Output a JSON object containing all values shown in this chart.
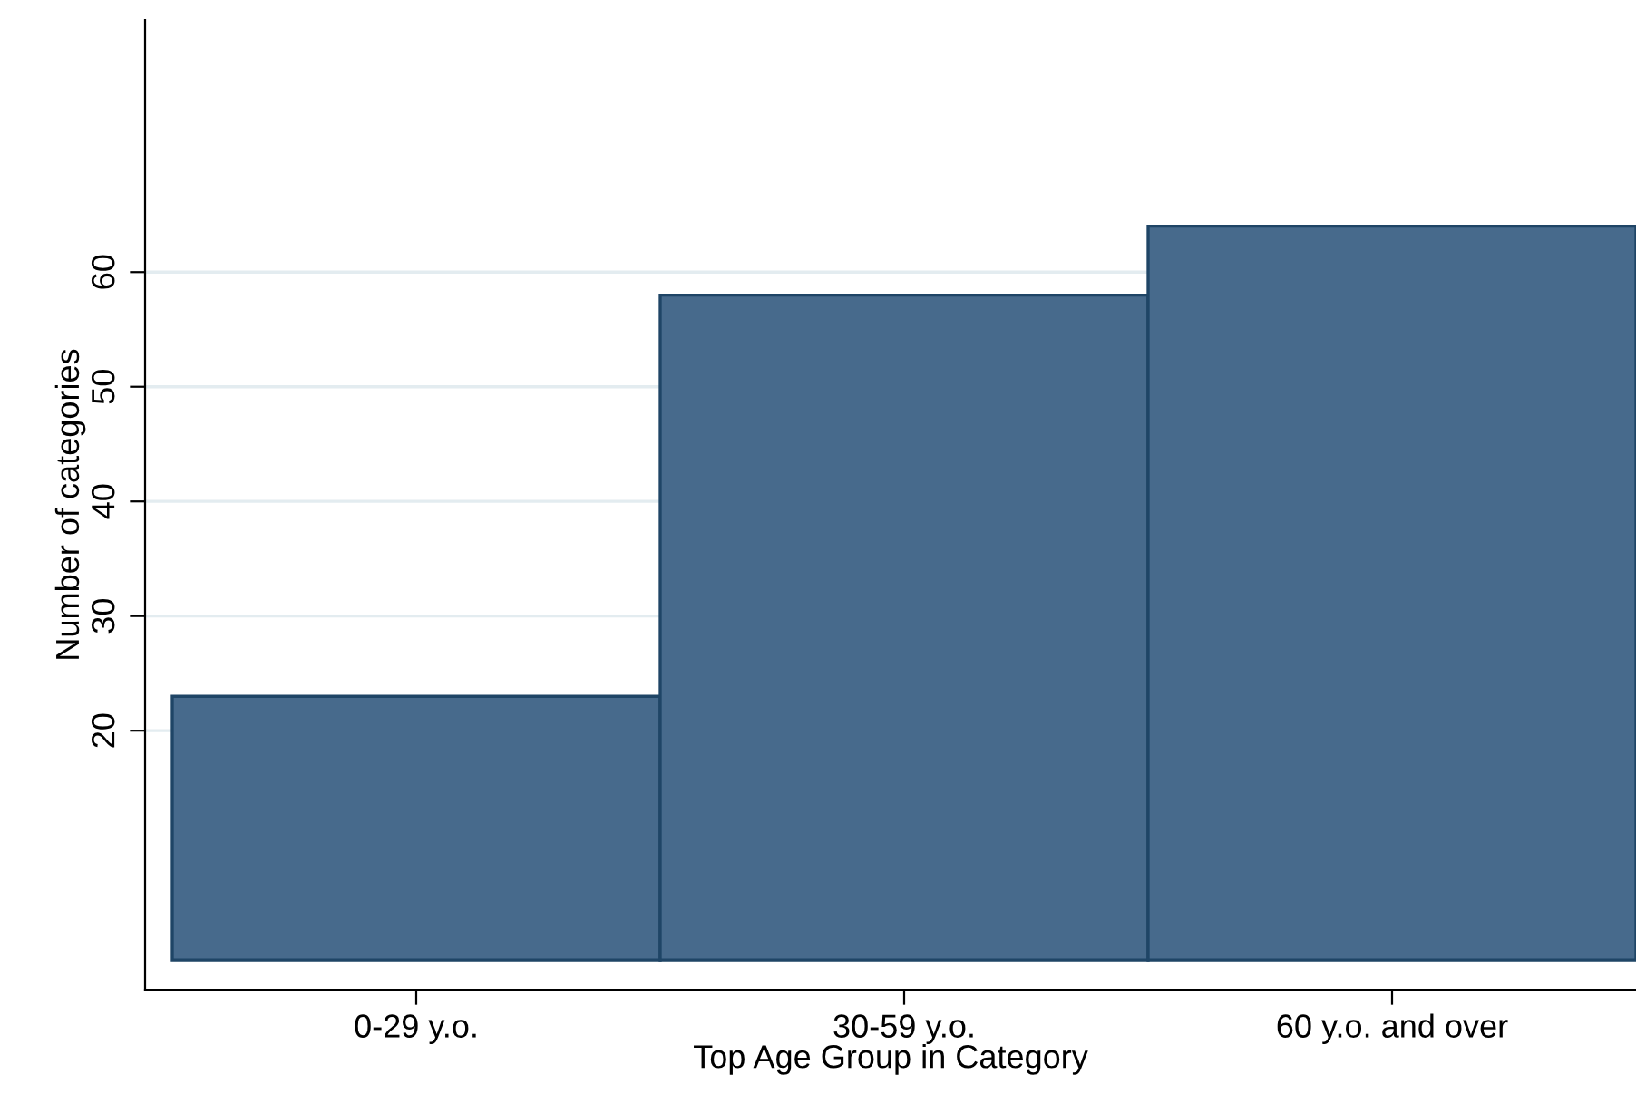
{
  "chart_data": {
    "type": "bar",
    "xlabel": "Top Age Group in Category",
    "ylabel": "Number of categories",
    "categories": [
      "0-29 y.o.",
      "30-59 y.o.",
      "60 y.o. and over"
    ],
    "values": [
      23,
      58,
      64
    ],
    "color": "#476a8c",
    "ylim": [
      -2.6,
      82
    ],
    "yticks": [
      20,
      30,
      40,
      50,
      60
    ],
    "grid": "y"
  }
}
